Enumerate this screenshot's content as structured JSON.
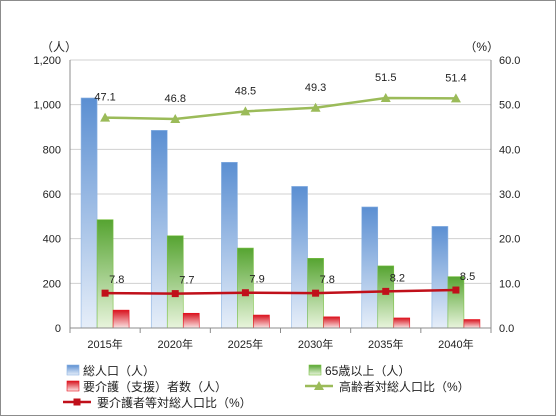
{
  "chart_data": {
    "type": "bar",
    "categories": [
      "2015年",
      "2020年",
      "2025年",
      "2030年",
      "2035年",
      "2040年"
    ],
    "y_left": {
      "unit": "（人）",
      "min": 0,
      "max": 1200,
      "ticks": [
        "0",
        "200",
        "400",
        "600",
        "800",
        "1,000",
        "1,200"
      ]
    },
    "y_right": {
      "unit": "（%）",
      "min": 0,
      "max": 60,
      "ticks": [
        "0.0",
        "10.0",
        "20.0",
        "30.0",
        "40.0",
        "50.0",
        "60.0"
      ]
    },
    "grid": true,
    "legend_position": "bottom",
    "series": [
      {
        "name": "総人口（人）",
        "kind": "bar",
        "axis": "left",
        "color": "#8eb4e3",
        "values": [
          1030,
          885,
          742,
          634,
          542,
          455
        ]
      },
      {
        "name": "65歳以上（人）",
        "kind": "bar",
        "axis": "left",
        "color": "#7ac043",
        "values": [
          485,
          413,
          358,
          312,
          278,
          230
        ]
      },
      {
        "name": "要介護（支援）者数（人）",
        "kind": "bar",
        "axis": "left",
        "color": "#e8101c",
        "values": [
          80,
          66,
          58,
          50,
          45,
          38
        ]
      },
      {
        "name": "高齢者対総人口比（%）",
        "kind": "line",
        "axis": "right",
        "color": "#9bbb59",
        "values": [
          47.1,
          46.8,
          48.5,
          49.3,
          51.5,
          51.4
        ],
        "labels": [
          "47.1",
          "46.8",
          "48.5",
          "49.3",
          "51.5",
          "51.4"
        ]
      },
      {
        "name": "要介護者等対総人口比（%）",
        "kind": "line",
        "axis": "right",
        "color": "#c0101a",
        "values": [
          7.8,
          7.7,
          7.9,
          7.8,
          8.2,
          8.5
        ],
        "labels": [
          "7.8",
          "7.7",
          "7.9",
          "7.8",
          "8.2",
          "8.5"
        ]
      }
    ]
  }
}
